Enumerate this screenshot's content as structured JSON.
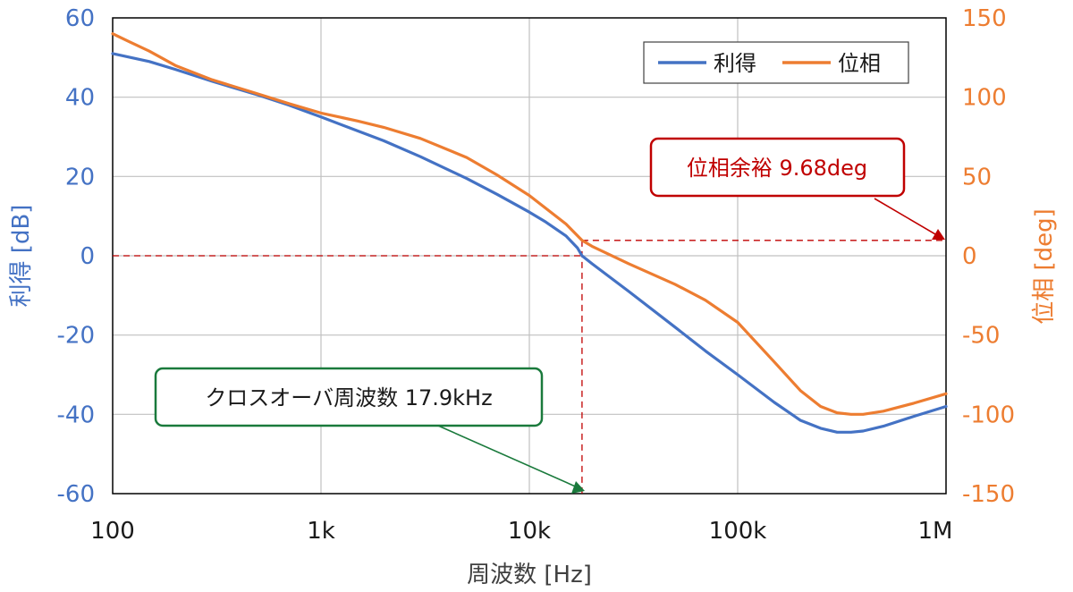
{
  "chart_data": {
    "type": "line",
    "xscale": "log",
    "xlim": [
      100,
      1000000
    ],
    "x_ticks": [
      100,
      1000,
      10000,
      100000,
      1000000
    ],
    "x_tick_labels": [
      "100",
      "1k",
      "10k",
      "100k",
      "1M"
    ],
    "xlabel": "周波数 [Hz]",
    "ylabel_left": "利得 [dB]",
    "ylabel_right": "位相 [deg]",
    "ylim_left": [
      -60,
      60
    ],
    "ylim_right": [
      -150,
      150
    ],
    "y_ticks_left": [
      "60",
      "40",
      "20",
      "0",
      "-20",
      "-40",
      "-60"
    ],
    "y_ticks_right": [
      "150",
      "100",
      "50",
      "0",
      "-50",
      "-100",
      "-150"
    ],
    "grid": true,
    "legend_position": "top-right",
    "colors": {
      "gain": "#4472c4",
      "phase": "#ed7d31",
      "phase_margin": "#c00000",
      "crossover": "#1a7a3c",
      "grid": "#c0c0c0"
    },
    "series": [
      {
        "name": "利得",
        "axis": "left",
        "x": [
          100,
          150,
          200,
          300,
          500,
          700,
          1000,
          1500,
          2000,
          3000,
          5000,
          7000,
          10000,
          12000,
          15000,
          17000,
          17900,
          20000,
          30000,
          50000,
          70000,
          100000,
          150000,
          200000,
          250000,
          300000,
          350000,
          400000,
          500000,
          700000,
          1000000
        ],
        "values": [
          51,
          49,
          47,
          44,
          40.5,
          38,
          35,
          31.5,
          29,
          25,
          19.5,
          15.5,
          11,
          8.5,
          5,
          2,
          0,
          -2,
          -9,
          -18,
          -24,
          -30,
          -37,
          -41.5,
          -43.5,
          -44.5,
          -44.5,
          -44.2,
          -43,
          -40.5,
          -38
        ]
      },
      {
        "name": "位相",
        "axis": "right",
        "x": [
          100,
          120,
          150,
          200,
          300,
          500,
          700,
          1000,
          1500,
          2000,
          3000,
          5000,
          7000,
          10000,
          15000,
          17900,
          20000,
          30000,
          50000,
          70000,
          100000,
          150000,
          200000,
          250000,
          300000,
          350000,
          400000,
          500000,
          700000,
          1000000
        ],
        "values": [
          140,
          135,
          129,
          120,
          111,
          102,
          96,
          90,
          85,
          81,
          74,
          62,
          51,
          38,
          20,
          9.68,
          6,
          -5,
          -18,
          -28,
          -42,
          -67,
          -85,
          -95,
          -99,
          -100,
          -100,
          -98,
          -93,
          -87
        ]
      }
    ],
    "annotations": {
      "phase_margin": {
        "text": "位相余裕  9.68deg",
        "x": 1000000,
        "value": 9.68
      },
      "crossover": {
        "text": "クロスオーバ周波数  17.9kHz",
        "x": 17900,
        "value": 0
      }
    }
  }
}
